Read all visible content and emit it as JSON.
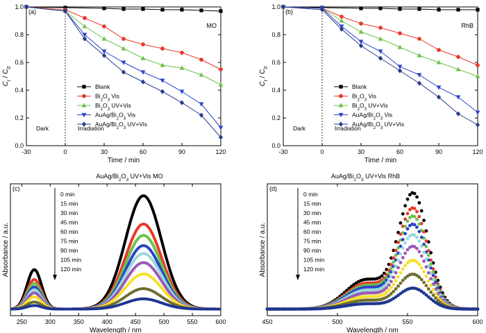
{
  "chart_data": [
    {
      "type": "line",
      "panel": "(a)",
      "annotation": "MO",
      "xlabel": "Time / min",
      "ylabel": "Ct / C0",
      "xlim": [
        -30,
        120
      ],
      "ylim": [
        0.0,
        1.0
      ],
      "xticks": [
        -30,
        0,
        30,
        60,
        90,
        120
      ],
      "yticks": [
        0.0,
        0.2,
        0.4,
        0.6,
        0.8,
        1.0
      ],
      "region_labels": [
        "Dark",
        "Irradiation"
      ],
      "legend_position": "bottom-center",
      "series": [
        {
          "name": "Blank",
          "marker": "square",
          "color": "#000000",
          "x": [
            -30,
            0,
            30,
            45,
            60,
            75,
            90,
            105,
            120
          ],
          "y": [
            1.0,
            0.995,
            0.99,
            0.985,
            0.985,
            0.98,
            0.98,
            0.975,
            0.97
          ]
        },
        {
          "name": "Bi2O3 Vis",
          "marker": "circle",
          "color": "#e8392a",
          "x": [
            -30,
            0,
            15,
            30,
            45,
            60,
            75,
            90,
            105,
            120
          ],
          "y": [
            1.0,
            0.98,
            0.92,
            0.86,
            0.77,
            0.73,
            0.7,
            0.67,
            0.62,
            0.55
          ]
        },
        {
          "name": "Bi2O3 UV+Vis",
          "marker": "triangle-up",
          "color": "#6cc24a",
          "x": [
            -30,
            0,
            15,
            30,
            45,
            60,
            75,
            90,
            105,
            120
          ],
          "y": [
            1.0,
            0.97,
            0.86,
            0.77,
            0.7,
            0.63,
            0.58,
            0.56,
            0.51,
            0.44
          ]
        },
        {
          "name": "AuAg/Bi2O3 Vis",
          "marker": "triangle-down",
          "color": "#2b44c9",
          "x": [
            -30,
            0,
            15,
            30,
            45,
            60,
            75,
            90,
            105,
            120
          ],
          "y": [
            1.0,
            0.97,
            0.8,
            0.68,
            0.6,
            0.53,
            0.47,
            0.39,
            0.3,
            0.13
          ]
        },
        {
          "name": "AuAg/Bi2O3 UV+Vis",
          "marker": "diamond",
          "color": "#2a3a8a",
          "x": [
            -30,
            0,
            15,
            30,
            45,
            60,
            75,
            90,
            105,
            120
          ],
          "y": [
            1.0,
            0.97,
            0.77,
            0.65,
            0.53,
            0.46,
            0.39,
            0.31,
            0.22,
            0.06
          ]
        }
      ]
    },
    {
      "type": "line",
      "panel": "(b)",
      "annotation": "RhB",
      "xlabel": "Time / min",
      "ylabel": "Ct / C0",
      "xlim": [
        -30,
        120
      ],
      "ylim": [
        0.0,
        1.0
      ],
      "xticks": [
        -30,
        0,
        30,
        60,
        90,
        120
      ],
      "yticks": [
        0.0,
        0.2,
        0.4,
        0.6,
        0.8,
        1.0
      ],
      "region_labels": [
        "Dark",
        "Irradiation"
      ],
      "legend_position": "bottom-center",
      "series": [
        {
          "name": "Blank",
          "marker": "square",
          "color": "#000000",
          "x": [
            -30,
            0,
            30,
            45,
            60,
            75,
            90,
            105,
            120
          ],
          "y": [
            1.0,
            0.995,
            0.99,
            0.99,
            0.985,
            0.985,
            0.98,
            0.98,
            0.98
          ]
        },
        {
          "name": "Bi2O3 Vis",
          "marker": "circle",
          "color": "#e8392a",
          "x": [
            -30,
            0,
            15,
            30,
            45,
            60,
            75,
            90,
            105,
            120
          ],
          "y": [
            1.0,
            0.99,
            0.93,
            0.88,
            0.85,
            0.81,
            0.77,
            0.69,
            0.64,
            0.58
          ]
        },
        {
          "name": "Bi2O3 UV+Vis",
          "marker": "triangle-up",
          "color": "#6cc24a",
          "x": [
            -30,
            0,
            15,
            30,
            45,
            60,
            75,
            90,
            105,
            120
          ],
          "y": [
            1.0,
            0.99,
            0.9,
            0.82,
            0.77,
            0.71,
            0.65,
            0.6,
            0.55,
            0.5
          ]
        },
        {
          "name": "AuAg/Bi2O3 Vis",
          "marker": "triangle-down",
          "color": "#2b44c9",
          "x": [
            -30,
            0,
            15,
            30,
            45,
            60,
            75,
            90,
            105,
            120
          ],
          "y": [
            1.0,
            0.99,
            0.86,
            0.75,
            0.68,
            0.57,
            0.51,
            0.42,
            0.35,
            0.24
          ]
        },
        {
          "name": "AuAg/Bi2O3 UV+Vis",
          "marker": "diamond",
          "color": "#2a3a8a",
          "x": [
            -30,
            0,
            15,
            30,
            45,
            60,
            75,
            90,
            105,
            120
          ],
          "y": [
            1.0,
            0.98,
            0.84,
            0.72,
            0.63,
            0.54,
            0.45,
            0.35,
            0.23,
            0.15
          ]
        }
      ]
    },
    {
      "type": "line",
      "panel": "(c)",
      "title": "AuAg/Bi2O3 UV+Vis MO",
      "xlabel": "Wavelength / nm",
      "ylabel": "Absorbance / a.u.",
      "xlim": [
        230,
        600
      ],
      "ylim": [
        0.0,
        1.0
      ],
      "xticks": [
        250,
        300,
        350,
        400,
        450,
        500,
        550,
        600
      ],
      "legend_position": "left-stacked",
      "series": [
        {
          "name": "0 min",
          "color": "#000000",
          "scale": 1.0
        },
        {
          "name": "15 min",
          "color": "#e8392a",
          "scale": 0.75
        },
        {
          "name": "30 min",
          "color": "#6cc24a",
          "scale": 0.65
        },
        {
          "name": "45 min",
          "color": "#2b44c9",
          "scale": 0.56
        },
        {
          "name": "60 min",
          "color": "#9ad9d9",
          "scale": 0.49
        },
        {
          "name": "75 min",
          "color": "#9b59b6",
          "scale": 0.41
        },
        {
          "name": "90 min",
          "color": "#f4e12a",
          "scale": 0.31
        },
        {
          "name": "105 min",
          "color": "#6e6e2e",
          "scale": 0.18
        },
        {
          "name": "120 min",
          "color": "#1f3591",
          "scale": 0.09
        }
      ],
      "peaks": [
        {
          "center_nm": 464,
          "width_nm": 45,
          "max_absorbance": 0.86
        },
        {
          "center_nm": 272,
          "width_nm": 18,
          "max_absorbance": 0.3
        }
      ],
      "baseline": 0.05
    },
    {
      "type": "scatter",
      "panel": "(d)",
      "title": "AuAg/Bi2O3 UV+Vis RhB",
      "xlabel": "Wavelength / nm",
      "ylabel": "Absorbance / a.u.",
      "xlim": [
        450,
        600
      ],
      "ylim": [
        0.0,
        1.0
      ],
      "xticks": [
        450,
        500,
        550,
        600
      ],
      "legend_position": "left-stacked",
      "series": [
        {
          "name": "0 min",
          "color": "#000000",
          "scale": 1.0
        },
        {
          "name": "15 min",
          "color": "#e8392a",
          "scale": 0.87
        },
        {
          "name": "30 min",
          "color": "#6cc24a",
          "scale": 0.8
        },
        {
          "name": "45 min",
          "color": "#2b44c9",
          "scale": 0.73
        },
        {
          "name": "60 min",
          "color": "#9ad9d9",
          "scale": 0.64
        },
        {
          "name": "75 min",
          "color": "#9b59b6",
          "scale": 0.54
        },
        {
          "name": "90 min",
          "color": "#f4e12a",
          "scale": 0.42
        },
        {
          "name": "105 min",
          "color": "#6e6e2e",
          "scale": 0.3
        },
        {
          "name": "120 min",
          "color": "#1f3591",
          "scale": 0.18
        }
      ],
      "peaks": [
        {
          "center_nm": 554,
          "width_nm": 15,
          "max_absorbance": 0.87
        },
        {
          "center_nm": 520,
          "width_nm": 20,
          "max_absorbance": 0.22
        }
      ],
      "baseline": 0.05
    }
  ]
}
